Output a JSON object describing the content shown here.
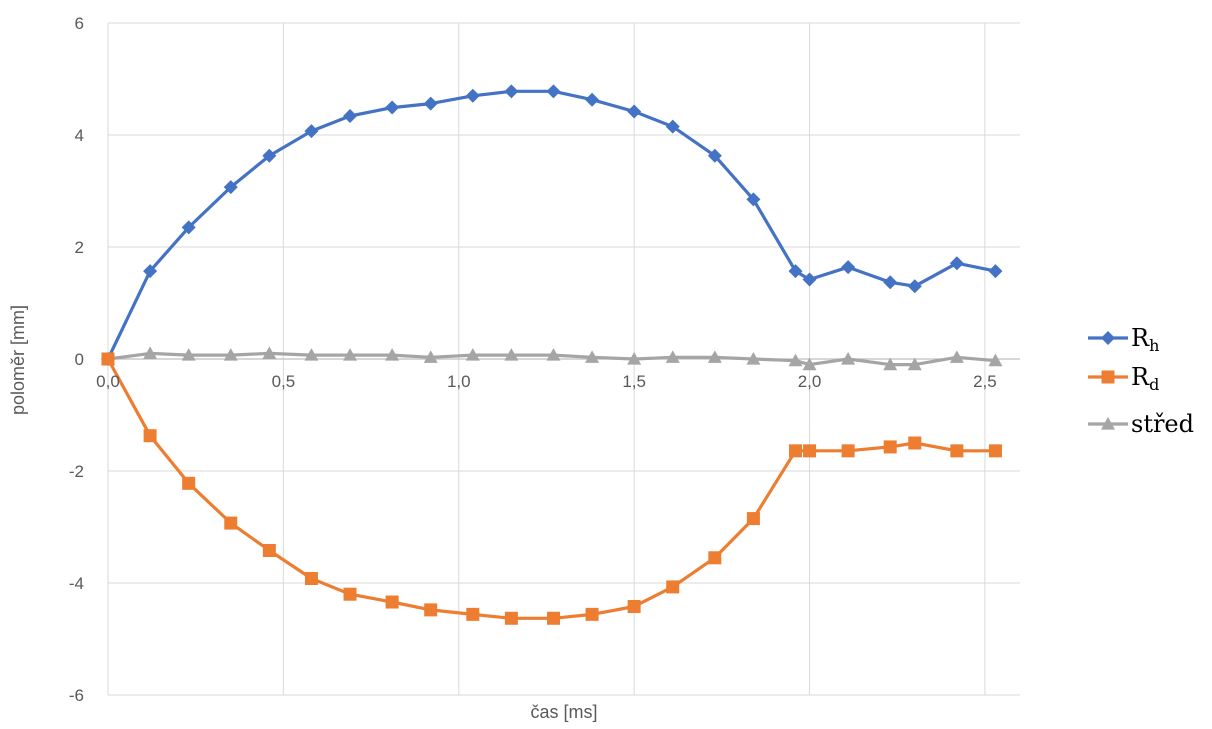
{
  "chart_data": {
    "type": "line",
    "xlabel": "čas [ms]",
    "ylabel": "poloměr [mm]",
    "xlim": [
      0,
      2.6
    ],
    "ylim": [
      -6,
      6
    ],
    "x_ticks": [
      0,
      0.5,
      1.0,
      1.5,
      2.0,
      2.5
    ],
    "x_tick_labels": [
      "0,0",
      "0,5",
      "1,0",
      "1,5",
      "2,0",
      "2,5"
    ],
    "y_ticks": [
      -6,
      -4,
      -2,
      0,
      2,
      4,
      6
    ],
    "y_tick_labels": [
      "-6",
      "-4",
      "-2",
      "0",
      "2",
      "4",
      "6"
    ],
    "grid": true,
    "legend_position": "right",
    "series": [
      {
        "name": "R",
        "subscript": "h",
        "color": "#4472C4",
        "marker": "diamond",
        "points": [
          [
            0.0,
            0.0
          ],
          [
            0.12,
            1.57
          ],
          [
            0.23,
            2.35
          ],
          [
            0.35,
            3.07
          ],
          [
            0.46,
            3.63
          ],
          [
            0.58,
            4.07
          ],
          [
            0.69,
            4.34
          ],
          [
            0.81,
            4.49
          ],
          [
            0.92,
            4.56
          ],
          [
            1.04,
            4.7
          ],
          [
            1.15,
            4.78
          ],
          [
            1.27,
            4.78
          ],
          [
            1.38,
            4.63
          ],
          [
            1.5,
            4.42
          ],
          [
            1.61,
            4.15
          ],
          [
            1.73,
            3.63
          ],
          [
            1.84,
            2.85
          ],
          [
            1.96,
            1.57
          ],
          [
            2.0,
            1.42
          ],
          [
            2.11,
            1.64
          ],
          [
            2.23,
            1.37
          ],
          [
            2.3,
            1.3
          ],
          [
            2.42,
            1.71
          ],
          [
            2.53,
            1.57
          ]
        ]
      },
      {
        "name": "R",
        "subscript": "d",
        "color": "#ED7D31",
        "marker": "square",
        "points": [
          [
            0.0,
            0.0
          ],
          [
            0.12,
            -1.37
          ],
          [
            0.23,
            -2.22
          ],
          [
            0.35,
            -2.93
          ],
          [
            0.46,
            -3.42
          ],
          [
            0.58,
            -3.92
          ],
          [
            0.69,
            -4.2
          ],
          [
            0.81,
            -4.34
          ],
          [
            0.92,
            -4.48
          ],
          [
            1.04,
            -4.56
          ],
          [
            1.15,
            -4.63
          ],
          [
            1.27,
            -4.63
          ],
          [
            1.38,
            -4.56
          ],
          [
            1.5,
            -4.42
          ],
          [
            1.61,
            -4.07
          ],
          [
            1.73,
            -3.55
          ],
          [
            1.84,
            -2.85
          ],
          [
            1.96,
            -1.64
          ],
          [
            2.0,
            -1.64
          ],
          [
            2.11,
            -1.64
          ],
          [
            2.23,
            -1.57
          ],
          [
            2.3,
            -1.5
          ],
          [
            2.42,
            -1.64
          ],
          [
            2.53,
            -1.64
          ]
        ]
      },
      {
        "name": "střed",
        "subscript": "",
        "color": "#A5A5A5",
        "marker": "triangle",
        "points": [
          [
            0.0,
            0.0
          ],
          [
            0.12,
            0.1
          ],
          [
            0.23,
            0.07
          ],
          [
            0.35,
            0.07
          ],
          [
            0.46,
            0.1
          ],
          [
            0.58,
            0.07
          ],
          [
            0.69,
            0.07
          ],
          [
            0.81,
            0.07
          ],
          [
            0.92,
            0.03
          ],
          [
            1.04,
            0.07
          ],
          [
            1.15,
            0.07
          ],
          [
            1.27,
            0.07
          ],
          [
            1.38,
            0.03
          ],
          [
            1.5,
            0.0
          ],
          [
            1.61,
            0.03
          ],
          [
            1.73,
            0.03
          ],
          [
            1.84,
            0.0
          ],
          [
            1.96,
            -0.03
          ],
          [
            2.0,
            -0.1
          ],
          [
            2.11,
            0.0
          ],
          [
            2.23,
            -0.1
          ],
          [
            2.3,
            -0.1
          ],
          [
            2.42,
            0.03
          ],
          [
            2.53,
            -0.03
          ]
        ]
      }
    ]
  }
}
